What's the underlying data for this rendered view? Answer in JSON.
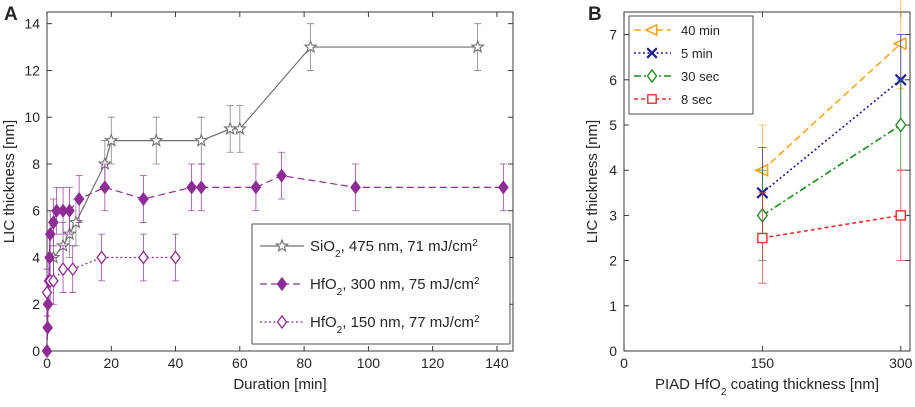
{
  "chart_data": [
    {
      "type": "line",
      "panel": "A",
      "xlabel": "Duration [min]",
      "ylabel": "LIC thickness [nm]",
      "xlim": [
        0,
        145
      ],
      "ylim": [
        0,
        14.5
      ],
      "xticks": [
        0,
        20,
        40,
        60,
        80,
        100,
        120,
        140
      ],
      "yticks": [
        0,
        2,
        4,
        6,
        8,
        10,
        12,
        14
      ],
      "grid": false,
      "legend_position": "bottom-right",
      "series": [
        {
          "name": "SiO₂, 475 nm, 71 mJ/cm²",
          "label_parts": [
            "SiO",
            "2",
            ", 475 nm, 71 mJ/cm",
            "2"
          ],
          "color": "#707070",
          "marker": "star",
          "linestyle": "solid",
          "points": [
            {
              "x": 2,
              "y": 4,
              "err": 1
            },
            {
              "x": 5,
              "y": 4.5,
              "err": 1
            },
            {
              "x": 7,
              "y": 5,
              "err": 1
            },
            {
              "x": 9,
              "y": 5.5,
              "err": 1
            },
            {
              "x": 18,
              "y": 8,
              "err": 1
            },
            {
              "x": 20,
              "y": 9,
              "err": 1
            },
            {
              "x": 34,
              "y": 9,
              "err": 1
            },
            {
              "x": 48,
              "y": 9,
              "err": 1
            },
            {
              "x": 57,
              "y": 9.5,
              "err": 1
            },
            {
              "x": 60,
              "y": 9.5,
              "err": 1
            },
            {
              "x": 82,
              "y": 13,
              "err": 1
            },
            {
              "x": 134,
              "y": 13,
              "err": 1
            }
          ]
        },
        {
          "name": "HfO₂, 300 nm, 75 mJ/cm²",
          "label_parts": [
            "HfO",
            "2",
            ", 300 nm, 75 mJ/cm",
            "2"
          ],
          "color": "#8e2c96",
          "marker": "diamond-filled",
          "linestyle": "dashed",
          "points": [
            {
              "x": 0,
              "y": 0,
              "err": 0
            },
            {
              "x": 0.2,
              "y": 1,
              "err": 0
            },
            {
              "x": 0.3,
              "y": 2,
              "err": 1
            },
            {
              "x": 0.6,
              "y": 3,
              "err": 1
            },
            {
              "x": 0.8,
              "y": 4,
              "err": 1
            },
            {
              "x": 1,
              "y": 5,
              "err": 1
            },
            {
              "x": 2,
              "y": 5.5,
              "err": 1
            },
            {
              "x": 3,
              "y": 6,
              "err": 1
            },
            {
              "x": 5,
              "y": 6,
              "err": 1
            },
            {
              "x": 7,
              "y": 6,
              "err": 1
            },
            {
              "x": 10,
              "y": 6.5,
              "err": 1
            },
            {
              "x": 18,
              "y": 7,
              "err": 1
            },
            {
              "x": 30,
              "y": 6.5,
              "err": 1
            },
            {
              "x": 45,
              "y": 7,
              "err": 1
            },
            {
              "x": 48,
              "y": 7,
              "err": 1
            },
            {
              "x": 65,
              "y": 7,
              "err": 1
            },
            {
              "x": 73,
              "y": 7.5,
              "err": 1
            },
            {
              "x": 96,
              "y": 7,
              "err": 1
            },
            {
              "x": 142,
              "y": 7,
              "err": 1
            }
          ]
        },
        {
          "name": "HfO₂, 150 nm, 77 mJ/cm²",
          "label_parts": [
            "HfO",
            "2",
            ", 150 nm, 77 mJ/cm",
            "2"
          ],
          "color": "#8e2c96",
          "marker": "diamond-open",
          "linestyle": "dotted",
          "points": [
            {
              "x": 0,
              "y": 2.5,
              "err": 1
            },
            {
              "x": 1,
              "y": 3,
              "err": 1
            },
            {
              "x": 2,
              "y": 3,
              "err": 1
            },
            {
              "x": 5,
              "y": 3.5,
              "err": 1
            },
            {
              "x": 8,
              "y": 3.5,
              "err": 1
            },
            {
              "x": 17,
              "y": 4,
              "err": 1
            },
            {
              "x": 30,
              "y": 4,
              "err": 1
            },
            {
              "x": 40,
              "y": 4,
              "err": 1
            }
          ]
        }
      ]
    },
    {
      "type": "line",
      "panel": "B",
      "xlabel_parts": [
        "PIAD HfO",
        "2",
        " coating thickness [nm]"
      ],
      "xlabel": "PIAD HfO₂ coating thickness [nm]",
      "ylabel": "LIC thickness [nm]",
      "xlim": [
        0,
        310
      ],
      "ylim": [
        0,
        7.5
      ],
      "xticks": [
        0,
        150,
        300
      ],
      "yticks": [
        0,
        1,
        2,
        3,
        4,
        5,
        6,
        7
      ],
      "grid": false,
      "legend_position": "top-left",
      "series": [
        {
          "name": "40 min",
          "color": "#f5a623",
          "marker": "triangle-left",
          "linestyle": "dashed",
          "points": [
            {
              "x": 150,
              "y": 4,
              "err": 1
            },
            {
              "x": 300,
              "y": 6.8,
              "err": 1
            }
          ]
        },
        {
          "name": "5 min",
          "color": "#1c1c94",
          "marker": "x",
          "linestyle": "dotted",
          "points": [
            {
              "x": 150,
              "y": 3.5,
              "err": 1
            },
            {
              "x": 300,
              "y": 6,
              "err": 1
            }
          ]
        },
        {
          "name": "30 sec",
          "color": "#1a8a1a",
          "marker": "diamond-open",
          "linestyle": "dashdot",
          "points": [
            {
              "x": 150,
              "y": 3,
              "err": 1
            },
            {
              "x": 300,
              "y": 5,
              "err": 1
            }
          ]
        },
        {
          "name": "8 sec",
          "color": "#e83030",
          "marker": "square-open",
          "linestyle": "dashed-short",
          "points": [
            {
              "x": 150,
              "y": 2.5,
              "err": 1
            },
            {
              "x": 300,
              "y": 3,
              "err": 1
            }
          ]
        }
      ]
    }
  ]
}
